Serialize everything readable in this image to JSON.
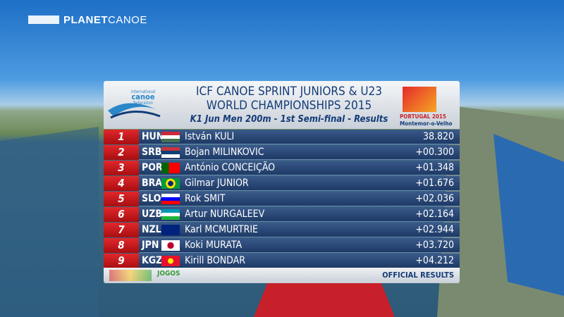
{
  "brand": {
    "part1": "PLANET",
    "part2": "CANOE"
  },
  "header": {
    "logo_left": {
      "small": "international",
      "name": "canoe",
      "sub": "federation"
    },
    "title_line1": "ICF CANOE SPRINT JUNIORS & U23",
    "title_line2": "WORLD CHAMPIONSHIPS 2015",
    "subtitle": "K1 Jun Men 200m - 1st Semi-final - Results",
    "logo_right": {
      "country": "PORTUGAL 2015",
      "city": "Montemor-o-Velho"
    }
  },
  "results": [
    {
      "rank": 1,
      "country": "HUN",
      "name": "István KULI",
      "time": "38.820"
    },
    {
      "rank": 2,
      "country": "SRB",
      "name": "Bojan MILINKOVIC",
      "time": "+00.300"
    },
    {
      "rank": 3,
      "country": "POR",
      "name": "António CONCEIÇÃO",
      "time": "+01.348"
    },
    {
      "rank": 4,
      "country": "BRA",
      "name": "Gilmar JUNIOR",
      "time": "+01.676"
    },
    {
      "rank": 5,
      "country": "SLO",
      "name": "Rok SMIT",
      "time": "+02.036"
    },
    {
      "rank": 6,
      "country": "UZB",
      "name": "Artur NURGALEEV",
      "time": "+02.164"
    },
    {
      "rank": 7,
      "country": "NZL",
      "name": "Karl MCMURTRIE",
      "time": "+02.944"
    },
    {
      "rank": 8,
      "country": "JPN",
      "name": "Koki MURATA",
      "time": "+03.720"
    },
    {
      "rank": 9,
      "country": "KGZ",
      "name": "Kirill BONDAR",
      "time": "+04.212"
    }
  ],
  "footer": {
    "sponsor": "JOGOS",
    "label": "OFFICIAL RESULTS"
  }
}
